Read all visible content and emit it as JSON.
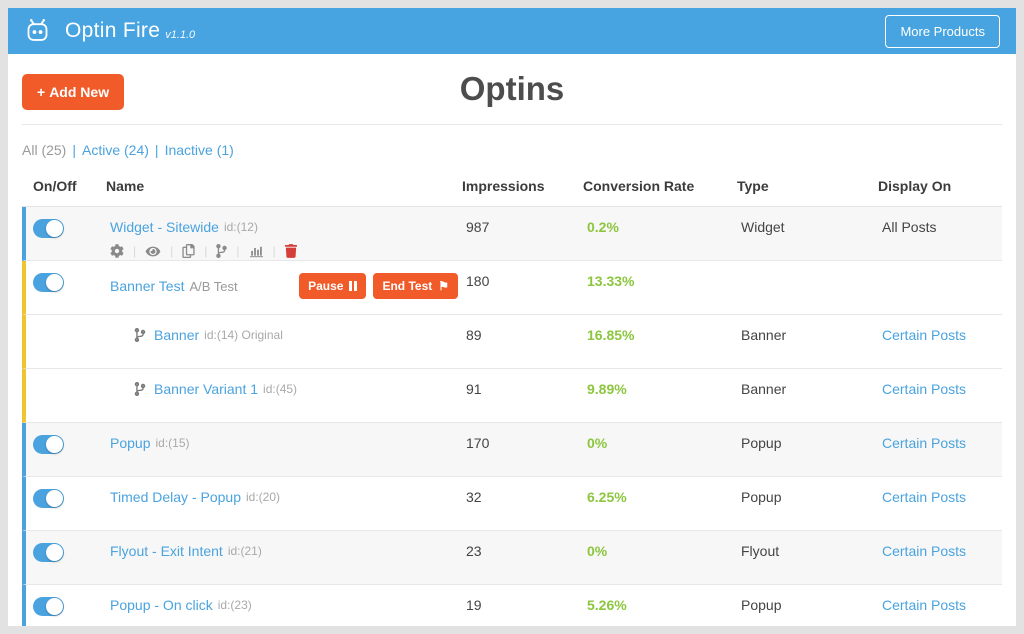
{
  "brand": {
    "name": "Optin Fire",
    "version": "v1.1.0"
  },
  "header": {
    "more_products_label": "More Products"
  },
  "page": {
    "title": "Optins",
    "add_new_label": "Add New"
  },
  "filters": {
    "all": "All (25)",
    "active": "Active (24)",
    "inactive": "Inactive (1)"
  },
  "columns": {
    "onoff": "On/Off",
    "name": "Name",
    "impressions": "Impressions",
    "conversion": "Conversion Rate",
    "type": "Type",
    "display": "Display On"
  },
  "test_buttons": {
    "pause": "Pause",
    "end_test": "End Test"
  },
  "action_icons": [
    "cogs-icon",
    "eye-icon",
    "duplicate-icon",
    "ab-fork-icon",
    "stats-icon",
    "trash-icon"
  ],
  "colors": {
    "accent_blue": "#47a4e0",
    "accent_orange": "#f15b2a",
    "success_green": "#8cc63e",
    "ab_group_yellow": "#f0c330"
  },
  "rows": [
    {
      "name": "Widget - Sitewide",
      "id": "id:(12)",
      "suffix": "",
      "impressions": "987",
      "conversion": "0.2%",
      "type": "Widget",
      "display": "All Posts",
      "display_link": false,
      "border": "blue",
      "shade": true,
      "toggle": true,
      "sub": false,
      "actions": true,
      "test_controls": false
    },
    {
      "name": "Banner Test",
      "id": "",
      "suffix": "A/B Test",
      "impressions": "180",
      "conversion": "13.33%",
      "type": "",
      "display": "",
      "display_link": false,
      "border": "yellow",
      "shade": false,
      "toggle": true,
      "sub": false,
      "actions": false,
      "test_controls": true
    },
    {
      "name": "Banner",
      "id": "id:(14) Original",
      "suffix": "",
      "impressions": "89",
      "conversion": "16.85%",
      "type": "Banner",
      "display": "Certain Posts",
      "display_link": true,
      "border": "yellow",
      "shade": false,
      "toggle": false,
      "sub": true,
      "actions": false,
      "test_controls": false
    },
    {
      "name": "Banner Variant 1",
      "id": "id:(45)",
      "suffix": "",
      "impressions": "91",
      "conversion": "9.89%",
      "type": "Banner",
      "display": "Certain Posts",
      "display_link": true,
      "border": "yellow",
      "shade": false,
      "toggle": false,
      "sub": true,
      "actions": false,
      "test_controls": false
    },
    {
      "name": "Popup",
      "id": "id:(15)",
      "suffix": "",
      "impressions": "170",
      "conversion": "0%",
      "type": "Popup",
      "display": "Certain Posts",
      "display_link": true,
      "border": "blue",
      "shade": true,
      "toggle": true,
      "sub": false,
      "actions": false,
      "test_controls": false
    },
    {
      "name": "Timed Delay - Popup",
      "id": "id:(20)",
      "suffix": "",
      "impressions": "32",
      "conversion": "6.25%",
      "type": "Popup",
      "display": "Certain Posts",
      "display_link": true,
      "border": "blue",
      "shade": false,
      "toggle": true,
      "sub": false,
      "actions": false,
      "test_controls": false
    },
    {
      "name": "Flyout - Exit Intent",
      "id": "id:(21)",
      "suffix": "",
      "impressions": "23",
      "conversion": "0%",
      "type": "Flyout",
      "display": "Certain Posts",
      "display_link": true,
      "border": "blue",
      "shade": true,
      "toggle": true,
      "sub": false,
      "actions": false,
      "test_controls": false
    },
    {
      "name": "Popup - On click",
      "id": "id:(23)",
      "suffix": "",
      "impressions": "19",
      "conversion": "5.26%",
      "type": "Popup",
      "display": "Certain Posts",
      "display_link": true,
      "border": "blue",
      "shade": false,
      "toggle": true,
      "sub": false,
      "actions": false,
      "test_controls": false
    }
  ]
}
